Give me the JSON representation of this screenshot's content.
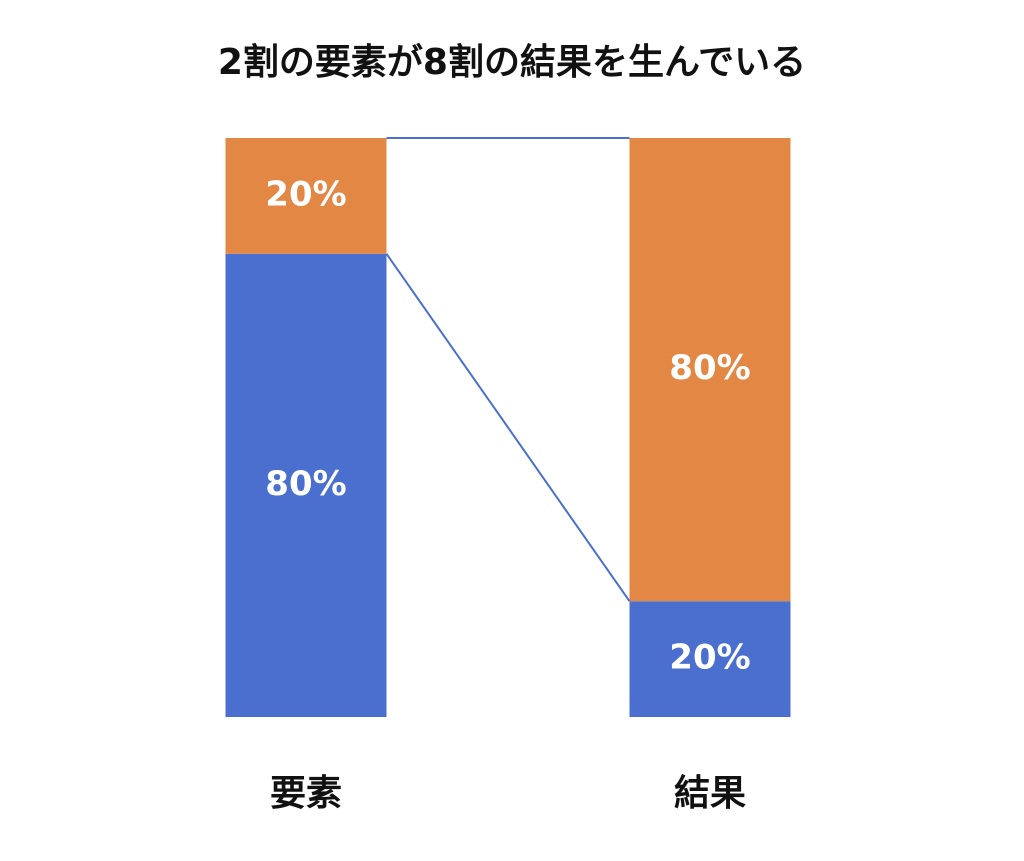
{
  "chart_data": {
    "type": "stacked_bar",
    "title": "2割の要素が8割の結果を生んでいる",
    "categories": [
      "要素",
      "結果"
    ],
    "series": [
      {
        "color": "#4a6fcf",
        "values": [
          80,
          20
        ],
        "value_labels": [
          "80%",
          "20%"
        ]
      },
      {
        "color": "#e38745",
        "values": [
          20,
          80
        ],
        "value_labels": [
          "20%",
          "80%"
        ]
      }
    ],
    "ylim": [
      0,
      100
    ],
    "connector_color": "#4a6fcf"
  }
}
